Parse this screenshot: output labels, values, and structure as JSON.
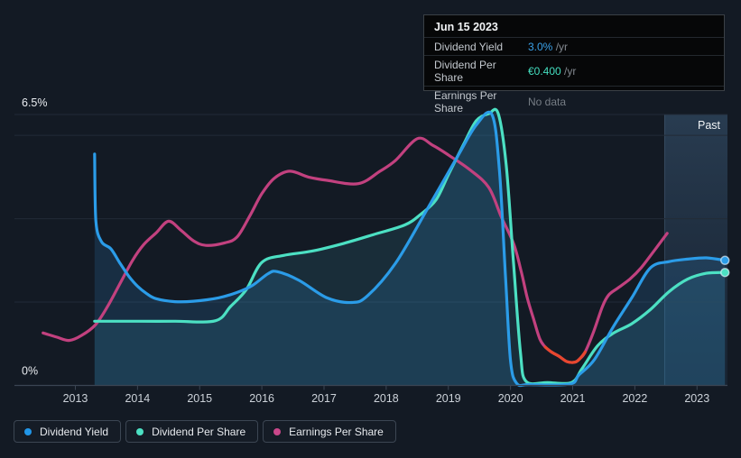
{
  "tooltip": {
    "date": "Jun 15 2023",
    "rows": [
      {
        "label": "Dividend Yield",
        "value": "3.0%",
        "suffix": " /yr",
        "color": "#3aa1e8",
        "nodata": false
      },
      {
        "label": "Dividend Per Share",
        "value": "€0.400",
        "suffix": " /yr",
        "color": "#44dfc0",
        "nodata": false
      },
      {
        "label": "Earnings Per Share",
        "value": "No data",
        "suffix": "",
        "color": "#767d85",
        "nodata": true
      }
    ]
  },
  "legend": {
    "items": [
      {
        "label": "Dividend Yield",
        "color": "#2196e8"
      },
      {
        "label": "Dividend Per Share",
        "color": "#4ce0c3"
      },
      {
        "label": "Earnings Per Share",
        "color": "#c9478a"
      }
    ]
  },
  "chart_data": {
    "type": "line",
    "x_axis": {
      "xlim": [
        2012.02,
        2023.49
      ],
      "ticks": [
        2013,
        2014,
        2015,
        2016,
        2017,
        2018,
        2019,
        2020,
        2021,
        2022,
        2023
      ]
    },
    "y_axis": {
      "ylim": [
        0,
        6.5
      ],
      "unit": "%",
      "gridlines": [
        0,
        2,
        4,
        6,
        6.5
      ],
      "labels": [
        {
          "value": 6.5,
          "text": "6.5%"
        },
        {
          "value": 0,
          "text": "0%"
        }
      ]
    },
    "past_band": {
      "label": "Past",
      "start": 2022.48
    },
    "grid_color": "#222b37",
    "axis_color": "#3b4553",
    "series": [
      {
        "name": "Dividend Per Share",
        "color": "#4ce0c3",
        "area": true,
        "area_fill": "rgba(62,165,190,0.14)",
        "end_dot": true,
        "points": [
          [
            2013.31,
            1.54
          ],
          [
            2014.0,
            1.54
          ],
          [
            2014.6,
            1.54
          ],
          [
            2015.25,
            1.55
          ],
          [
            2015.5,
            1.9
          ],
          [
            2015.75,
            2.3
          ],
          [
            2016.0,
            2.95
          ],
          [
            2016.35,
            3.12
          ],
          [
            2016.8,
            3.22
          ],
          [
            2017.3,
            3.4
          ],
          [
            2017.8,
            3.62
          ],
          [
            2018.3,
            3.85
          ],
          [
            2018.55,
            4.1
          ],
          [
            2018.8,
            4.45
          ],
          [
            2019.0,
            5.05
          ],
          [
            2019.25,
            5.8
          ],
          [
            2019.45,
            6.35
          ],
          [
            2019.65,
            6.52
          ],
          [
            2019.8,
            6.53
          ],
          [
            2019.93,
            5.3
          ],
          [
            2020.05,
            2.9
          ],
          [
            2020.16,
            0.8
          ],
          [
            2020.25,
            0.1
          ],
          [
            2020.6,
            0.07
          ],
          [
            2020.98,
            0.07
          ],
          [
            2021.15,
            0.4
          ],
          [
            2021.4,
            0.95
          ],
          [
            2021.65,
            1.25
          ],
          [
            2021.95,
            1.48
          ],
          [
            2022.25,
            1.82
          ],
          [
            2022.55,
            2.25
          ],
          [
            2022.85,
            2.55
          ],
          [
            2023.15,
            2.69
          ],
          [
            2023.45,
            2.71
          ]
        ]
      },
      {
        "name": "Dividend Yield",
        "color": "#2b9ce8",
        "area": true,
        "area_fill": "rgba(45,128,194,0.20)",
        "end_dot": true,
        "points": [
          [
            2013.31,
            5.55
          ],
          [
            2013.33,
            3.95
          ],
          [
            2013.42,
            3.45
          ],
          [
            2013.57,
            3.28
          ],
          [
            2013.71,
            2.95
          ],
          [
            2013.86,
            2.62
          ],
          [
            2014.0,
            2.38
          ],
          [
            2014.15,
            2.2
          ],
          [
            2014.3,
            2.08
          ],
          [
            2014.6,
            2.01
          ],
          [
            2014.9,
            2.02
          ],
          [
            2015.3,
            2.1
          ],
          [
            2015.6,
            2.23
          ],
          [
            2015.85,
            2.4
          ],
          [
            2016.1,
            2.68
          ],
          [
            2016.25,
            2.73
          ],
          [
            2016.6,
            2.52
          ],
          [
            2017.05,
            2.1
          ],
          [
            2017.45,
            1.99
          ],
          [
            2017.7,
            2.15
          ],
          [
            2018.15,
            2.93
          ],
          [
            2018.65,
            4.2
          ],
          [
            2019.15,
            5.5
          ],
          [
            2019.45,
            6.25
          ],
          [
            2019.7,
            6.5
          ],
          [
            2019.82,
            5.2
          ],
          [
            2019.92,
            2.6
          ],
          [
            2020.0,
            0.6
          ],
          [
            2020.1,
            0.05
          ],
          [
            2020.3,
            0.02
          ],
          [
            2020.95,
            0.03
          ],
          [
            2021.1,
            0.25
          ],
          [
            2021.35,
            0.62
          ],
          [
            2021.65,
            1.4
          ],
          [
            2021.95,
            2.1
          ],
          [
            2022.25,
            2.82
          ],
          [
            2022.55,
            2.97
          ],
          [
            2022.85,
            3.03
          ],
          [
            2023.15,
            3.06
          ],
          [
            2023.45,
            3.0
          ]
        ]
      },
      {
        "name": "Earnings Per Share",
        "color": "#c2417f",
        "area": false,
        "end_dot": false,
        "points": [
          [
            2012.48,
            1.26
          ],
          [
            2012.7,
            1.16
          ],
          [
            2012.9,
            1.08
          ],
          [
            2013.1,
            1.2
          ],
          [
            2013.32,
            1.45
          ],
          [
            2013.52,
            1.9
          ],
          [
            2013.72,
            2.45
          ],
          [
            2013.92,
            3.0
          ],
          [
            2014.1,
            3.38
          ],
          [
            2014.3,
            3.66
          ],
          [
            2014.5,
            3.94
          ],
          [
            2014.7,
            3.72
          ],
          [
            2014.9,
            3.47
          ],
          [
            2015.1,
            3.36
          ],
          [
            2015.4,
            3.42
          ],
          [
            2015.6,
            3.56
          ],
          [
            2015.8,
            4.05
          ],
          [
            2016.0,
            4.6
          ],
          [
            2016.2,
            4.97
          ],
          [
            2016.45,
            5.14
          ],
          [
            2016.75,
            5.0
          ],
          [
            2017.05,
            4.92
          ],
          [
            2017.55,
            4.84
          ],
          [
            2017.9,
            5.14
          ],
          [
            2018.15,
            5.4
          ],
          [
            2018.5,
            5.92
          ],
          [
            2018.75,
            5.76
          ],
          [
            2019.0,
            5.53
          ],
          [
            2019.35,
            5.17
          ],
          [
            2019.65,
            4.75
          ],
          [
            2019.85,
            4.05
          ],
          [
            2020.05,
            3.4
          ],
          [
            2020.17,
            2.75
          ],
          [
            2020.27,
            2.1
          ],
          [
            2020.37,
            1.6
          ],
          [
            2020.47,
            1.12
          ],
          [
            2020.56,
            0.92
          ],
          [
            2020.66,
            0.8
          ],
          [
            2020.78,
            0.7
          ],
          [
            2020.91,
            0.57
          ],
          [
            2021.04,
            0.56
          ],
          [
            2021.12,
            0.65
          ],
          [
            2021.2,
            0.8
          ],
          [
            2021.34,
            1.3
          ],
          [
            2021.48,
            1.9
          ],
          [
            2021.58,
            2.17
          ],
          [
            2021.72,
            2.33
          ],
          [
            2021.92,
            2.55
          ],
          [
            2022.1,
            2.82
          ],
          [
            2022.32,
            3.25
          ],
          [
            2022.52,
            3.65
          ]
        ],
        "negative_segment_color": "#e8472e",
        "negative_segment": [
          [
            2020.56,
            0.92
          ],
          [
            2020.66,
            0.8
          ],
          [
            2020.78,
            0.7
          ],
          [
            2020.91,
            0.57
          ],
          [
            2021.04,
            0.56
          ],
          [
            2021.12,
            0.65
          ],
          [
            2021.2,
            0.8
          ]
        ]
      }
    ]
  }
}
